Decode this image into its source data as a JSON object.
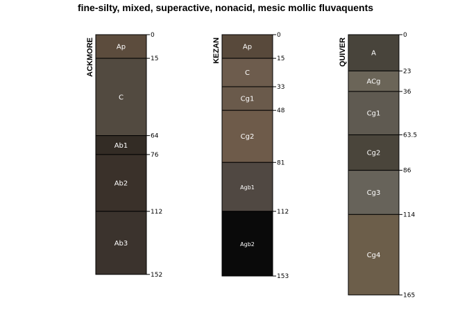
{
  "title": "fine-silty, mixed, superactive, nonacid, mesic mollic fluvaquents",
  "chart_data": {
    "type": "soil-profile-sketch",
    "title": "fine-silty, mixed, superactive, nonacid, mesic mollic fluvaquents",
    "depth_unit": "cm",
    "profiles": [
      {
        "name": "ACKMORE",
        "horizons": [
          {
            "name": "Ap",
            "top": 0,
            "bottom": 15,
            "color": "#5c4c3d"
          },
          {
            "name": "C",
            "top": 15,
            "bottom": 64,
            "color": "#524a40"
          },
          {
            "name": "Ab1",
            "top": 64,
            "bottom": 76,
            "color": "#332c25"
          },
          {
            "name": "Ab2",
            "top": 76,
            "bottom": 112,
            "color": "#3a312a"
          },
          {
            "name": "Ab3",
            "top": 112,
            "bottom": 152,
            "color": "#3b332d"
          }
        ],
        "depth_labels": [
          "0",
          "15",
          "64",
          "76",
          "112",
          "152"
        ]
      },
      {
        "name": "KEZAN",
        "horizons": [
          {
            "name": "Ap",
            "top": 0,
            "bottom": 15,
            "color": "#58493b"
          },
          {
            "name": "C",
            "top": 15,
            "bottom": 33,
            "color": "#6d5c4d"
          },
          {
            "name": "Cg1",
            "top": 33,
            "bottom": 48,
            "color": "#6a5a4b"
          },
          {
            "name": "Cg2",
            "top": 48,
            "bottom": 81,
            "color": "#6e5b4a"
          },
          {
            "name": "Agb1",
            "top": 81,
            "bottom": 112,
            "color": "#504842"
          },
          {
            "name": "Agb2",
            "top": 112,
            "bottom": 153,
            "color": "#0a0a0a"
          }
        ],
        "depth_labels": [
          "0",
          "15",
          "33",
          "48",
          "81",
          "112",
          "153"
        ]
      },
      {
        "name": "QUIVER",
        "horizons": [
          {
            "name": "A",
            "top": 0,
            "bottom": 23,
            "color": "#48443b"
          },
          {
            "name": "ACg",
            "top": 23,
            "bottom": 36,
            "color": "#6b6558"
          },
          {
            "name": "Cg1",
            "top": 36,
            "bottom": 63.5,
            "color": "#5f5a51"
          },
          {
            "name": "Cg2",
            "top": 63.5,
            "bottom": 86,
            "color": "#4a453b"
          },
          {
            "name": "Cg3",
            "top": 86,
            "bottom": 114,
            "color": "#67635a"
          },
          {
            "name": "Cg4",
            "top": 114,
            "bottom": 165,
            "color": "#6c5e4a"
          }
        ],
        "depth_labels": [
          "0",
          "23",
          "36",
          "63.5",
          "86",
          "114",
          "165"
        ]
      }
    ]
  }
}
